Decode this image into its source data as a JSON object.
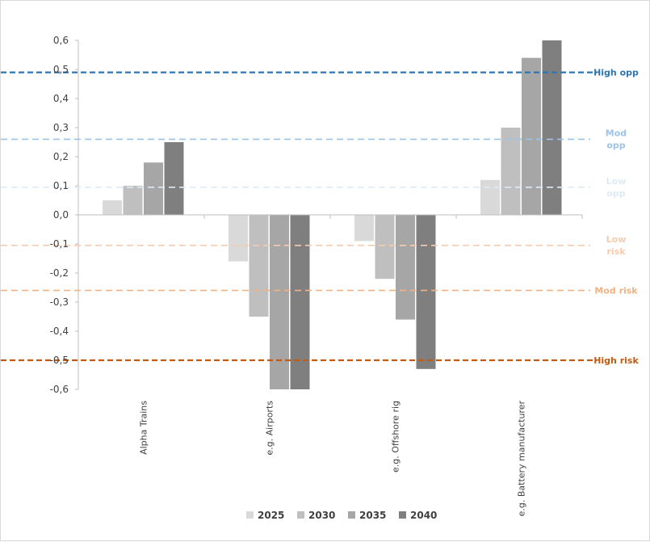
{
  "chart_data": {
    "type": "bar",
    "title": "",
    "xlabel": "",
    "ylabel": "",
    "ylim": [
      -0.6,
      0.6
    ],
    "yticks": [
      0.6,
      0.5,
      0.4,
      0.3,
      0.2,
      0.1,
      0.0,
      -0.1,
      -0.2,
      -0.3,
      -0.4,
      -0.5,
      -0.6
    ],
    "ytick_labels": [
      "0,6",
      "0,5",
      "0,4",
      "0,3",
      "0,2",
      "0,1",
      "0,0",
      "-0,1",
      "-0,2",
      "-0,3",
      "-0,4",
      "-0,5",
      "-0,6"
    ],
    "categories": [
      "Alpha Trains",
      "e.g. Airports",
      "e.g. Offshore rig",
      "e.g. Battery manufacturer"
    ],
    "series": [
      {
        "name": "2025",
        "color": "#d9d9d9",
        "values": [
          0.05,
          -0.16,
          -0.09,
          0.12
        ]
      },
      {
        "name": "2030",
        "color": "#bfbfbf",
        "values": [
          0.1,
          -0.35,
          -0.22,
          0.3
        ]
      },
      {
        "name": "2035",
        "color": "#a6a6a6",
        "values": [
          0.18,
          -0.6,
          -0.36,
          0.54
        ]
      },
      {
        "name": "2040",
        "color": "#7f7f7f",
        "values": [
          0.25,
          -0.6,
          -0.53,
          0.6
        ]
      }
    ],
    "reference_lines": [
      {
        "label_lines": [
          "High opp"
        ],
        "value": 0.49,
        "color": "#2e75b6",
        "weight": "heavy"
      },
      {
        "label_lines": [
          "Mod",
          "opp"
        ],
        "value": 0.26,
        "color": "#9dc3e6",
        "weight": "light"
      },
      {
        "label_lines": [
          "Low",
          "opp"
        ],
        "value": 0.095,
        "color": "#deebf7",
        "weight": "light"
      },
      {
        "label_lines": [
          "Low",
          "risk"
        ],
        "value": -0.105,
        "color": "#f8cbad",
        "weight": "light"
      },
      {
        "label_lines": [
          "Mod risk"
        ],
        "value": -0.26,
        "color": "#f4b183",
        "weight": "light"
      },
      {
        "label_lines": [
          "High risk"
        ],
        "value": -0.5,
        "color": "#c55a11",
        "weight": "heavy"
      }
    ],
    "legend": {
      "position": "bottom"
    },
    "grid": false
  }
}
